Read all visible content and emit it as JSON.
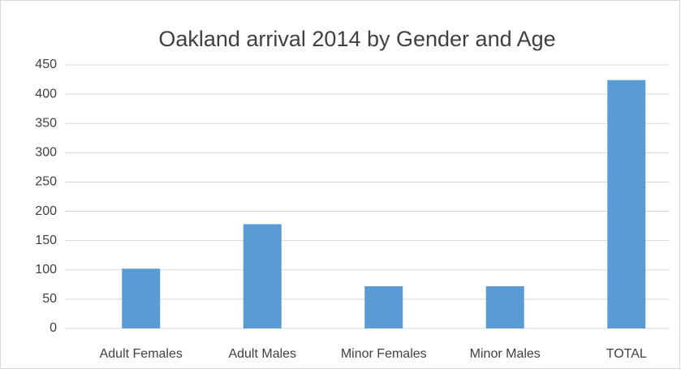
{
  "chart_data": {
    "type": "bar",
    "title": "Oakland arrival 2014 by Gender and Age",
    "categories": [
      "Adult Females",
      "Adult Males",
      "Minor Females",
      "Minor Males",
      "TOTAL"
    ],
    "values": [
      102,
      178,
      72,
      72,
      424
    ],
    "color": "#5b9bd5",
    "ylim": [
      0,
      450
    ],
    "yticks": [
      0,
      50,
      100,
      150,
      200,
      250,
      300,
      350,
      400,
      450
    ],
    "grid": true
  }
}
